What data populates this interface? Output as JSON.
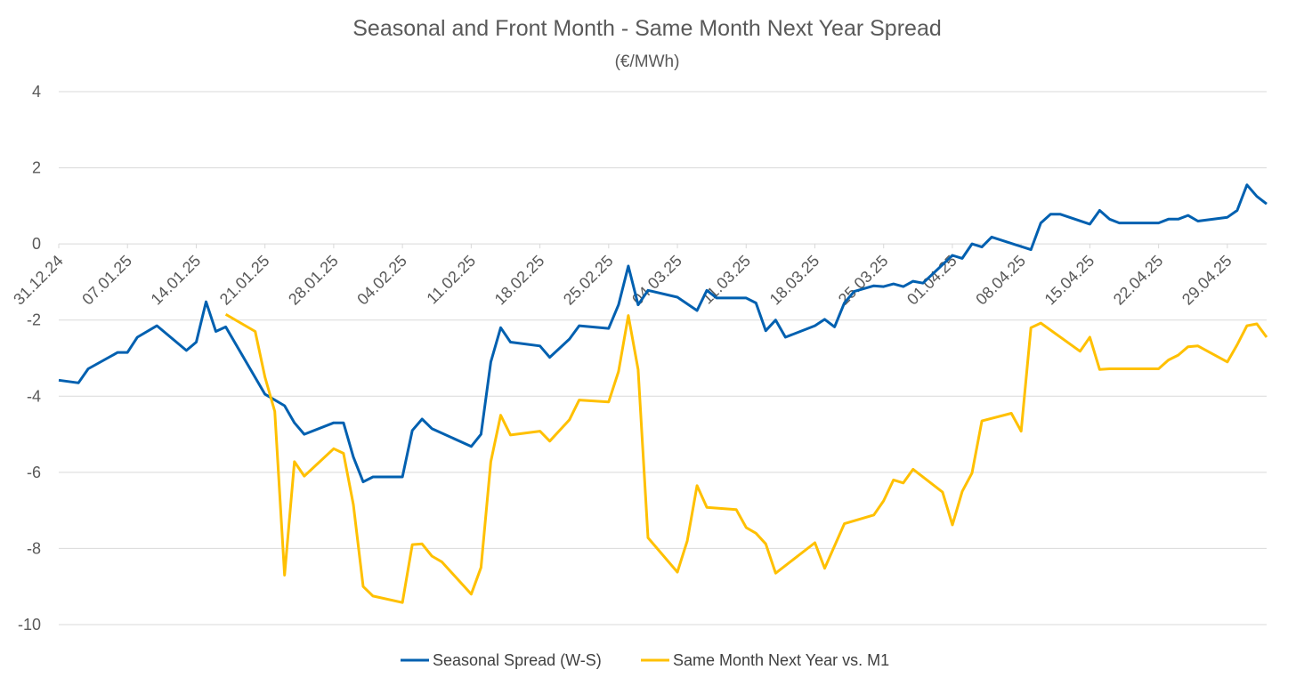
{
  "chart_data": {
    "type": "line",
    "title": "Seasonal and Front Month - Same Month Next Year Spread",
    "subtitle": "(€/MWh)",
    "ylim": [
      -10,
      4
    ],
    "yticks": [
      4,
      2,
      0,
      -2,
      -4,
      -6,
      -8,
      -10
    ],
    "xticks": [
      {
        "day": 0,
        "label": "31.12.24"
      },
      {
        "day": 7,
        "label": "07.01.25"
      },
      {
        "day": 14,
        "label": "14.01.25"
      },
      {
        "day": 21,
        "label": "21.01.25"
      },
      {
        "day": 28,
        "label": "28.01.25"
      },
      {
        "day": 35,
        "label": "04.02.25"
      },
      {
        "day": 42,
        "label": "11.02.25"
      },
      {
        "day": 49,
        "label": "18.02.25"
      },
      {
        "day": 56,
        "label": "25.02.25"
      },
      {
        "day": 63,
        "label": "04.03.25"
      },
      {
        "day": 70,
        "label": "11.03.25"
      },
      {
        "day": 77,
        "label": "18.03.25"
      },
      {
        "day": 84,
        "label": "25.03.25"
      },
      {
        "day": 91,
        "label": "01.04.25"
      },
      {
        "day": 98,
        "label": "08.04.25"
      },
      {
        "day": 105,
        "label": "15.04.25"
      },
      {
        "day": 112,
        "label": "22.04.25"
      },
      {
        "day": 119,
        "label": "29.04.25"
      }
    ],
    "xlim": [
      0,
      123
    ],
    "grid": true,
    "legend": "bottom",
    "series": [
      {
        "name": "Seasonal Spread (W-S)",
        "color": "#0060b0",
        "points": [
          [
            0,
            -3.58
          ],
          [
            2,
            -3.65
          ],
          [
            3,
            -3.28
          ],
          [
            6,
            -2.85
          ],
          [
            7,
            -2.85
          ],
          [
            8,
            -2.45
          ],
          [
            10,
            -2.15
          ],
          [
            13,
            -2.8
          ],
          [
            14,
            -2.58
          ],
          [
            15,
            -1.52
          ],
          [
            16,
            -2.3
          ],
          [
            17,
            -2.18
          ],
          [
            21,
            -3.95
          ],
          [
            23,
            -4.25
          ],
          [
            24,
            -4.7
          ],
          [
            25,
            -5.0
          ],
          [
            28,
            -4.7
          ],
          [
            29,
            -4.7
          ],
          [
            30,
            -5.6
          ],
          [
            31,
            -6.25
          ],
          [
            32,
            -6.12
          ],
          [
            35,
            -6.12
          ],
          [
            36,
            -4.9
          ],
          [
            37,
            -4.6
          ],
          [
            38,
            -4.85
          ],
          [
            42,
            -5.32
          ],
          [
            43,
            -5.0
          ],
          [
            44,
            -3.1
          ],
          [
            45,
            -2.2
          ],
          [
            46,
            -2.58
          ],
          [
            49,
            -2.68
          ],
          [
            50,
            -2.98
          ],
          [
            52,
            -2.5
          ],
          [
            53,
            -2.15
          ],
          [
            56,
            -2.22
          ],
          [
            57,
            -1.6
          ],
          [
            58,
            -0.58
          ],
          [
            59,
            -1.6
          ],
          [
            60,
            -1.22
          ],
          [
            63,
            -1.4
          ],
          [
            65,
            -1.75
          ],
          [
            66,
            -1.22
          ],
          [
            67,
            -1.42
          ],
          [
            70,
            -1.42
          ],
          [
            71,
            -1.55
          ],
          [
            72,
            -2.28
          ],
          [
            73,
            -2.0
          ],
          [
            74,
            -2.45
          ],
          [
            77,
            -2.15
          ],
          [
            78,
            -1.98
          ],
          [
            79,
            -2.18
          ],
          [
            80,
            -1.55
          ],
          [
            81,
            -1.25
          ],
          [
            83,
            -1.1
          ],
          [
            84,
            -1.12
          ],
          [
            85,
            -1.05
          ],
          [
            86,
            -1.12
          ],
          [
            87,
            -0.98
          ],
          [
            88,
            -1.03
          ],
          [
            91,
            -0.3
          ],
          [
            92,
            -0.38
          ],
          [
            93,
            0.0
          ],
          [
            94,
            -0.08
          ],
          [
            95,
            0.18
          ],
          [
            99,
            -0.15
          ],
          [
            100,
            0.55
          ],
          [
            101,
            0.78
          ],
          [
            102,
            0.78
          ],
          [
            105,
            0.52
          ],
          [
            106,
            0.88
          ],
          [
            107,
            0.65
          ],
          [
            108,
            0.55
          ],
          [
            112,
            0.55
          ],
          [
            113,
            0.65
          ],
          [
            114,
            0.65
          ],
          [
            115,
            0.75
          ],
          [
            116,
            0.6
          ],
          [
            119,
            0.7
          ],
          [
            120,
            0.88
          ],
          [
            121,
            1.55
          ],
          [
            122,
            1.25
          ],
          [
            123,
            1.05
          ]
        ]
      },
      {
        "name": "Same Month Next Year vs. M1",
        "color": "#ffc000",
        "points": [
          [
            17,
            -1.85
          ],
          [
            20,
            -2.3
          ],
          [
            21,
            -3.5
          ],
          [
            22,
            -4.4
          ],
          [
            23,
            -8.7
          ],
          [
            24,
            -5.72
          ],
          [
            25,
            -6.1
          ],
          [
            28,
            -5.38
          ],
          [
            29,
            -5.5
          ],
          [
            30,
            -6.85
          ],
          [
            31,
            -9.0
          ],
          [
            32,
            -9.25
          ],
          [
            35,
            -9.42
          ],
          [
            36,
            -7.9
          ],
          [
            37,
            -7.88
          ],
          [
            38,
            -8.2
          ],
          [
            39,
            -8.35
          ],
          [
            42,
            -9.2
          ],
          [
            43,
            -8.5
          ],
          [
            44,
            -5.72
          ],
          [
            45,
            -4.5
          ],
          [
            46,
            -5.02
          ],
          [
            49,
            -4.92
          ],
          [
            50,
            -5.18
          ],
          [
            52,
            -4.62
          ],
          [
            53,
            -4.1
          ],
          [
            56,
            -4.15
          ],
          [
            57,
            -3.35
          ],
          [
            58,
            -1.88
          ],
          [
            59,
            -3.3
          ],
          [
            60,
            -7.72
          ],
          [
            63,
            -8.62
          ],
          [
            64,
            -7.8
          ],
          [
            65,
            -6.35
          ],
          [
            66,
            -6.92
          ],
          [
            69,
            -6.98
          ],
          [
            70,
            -7.45
          ],
          [
            71,
            -7.6
          ],
          [
            72,
            -7.88
          ],
          [
            73,
            -8.65
          ],
          [
            77,
            -7.85
          ],
          [
            78,
            -8.52
          ],
          [
            80,
            -7.35
          ],
          [
            83,
            -7.12
          ],
          [
            84,
            -6.75
          ],
          [
            85,
            -6.2
          ],
          [
            86,
            -6.28
          ],
          [
            87,
            -5.92
          ],
          [
            90,
            -6.52
          ],
          [
            91,
            -7.38
          ],
          [
            92,
            -6.5
          ],
          [
            93,
            -6.02
          ],
          [
            94,
            -4.65
          ],
          [
            97,
            -4.45
          ],
          [
            98,
            -4.92
          ],
          [
            99,
            -2.2
          ],
          [
            100,
            -2.08
          ],
          [
            104,
            -2.82
          ],
          [
            105,
            -2.45
          ],
          [
            106,
            -3.3
          ],
          [
            107,
            -3.28
          ],
          [
            112,
            -3.28
          ],
          [
            113,
            -3.05
          ],
          [
            114,
            -2.92
          ],
          [
            115,
            -2.7
          ],
          [
            116,
            -2.68
          ],
          [
            119,
            -3.1
          ],
          [
            120,
            -2.65
          ],
          [
            121,
            -2.15
          ],
          [
            122,
            -2.1
          ],
          [
            123,
            -2.45
          ]
        ]
      }
    ]
  }
}
